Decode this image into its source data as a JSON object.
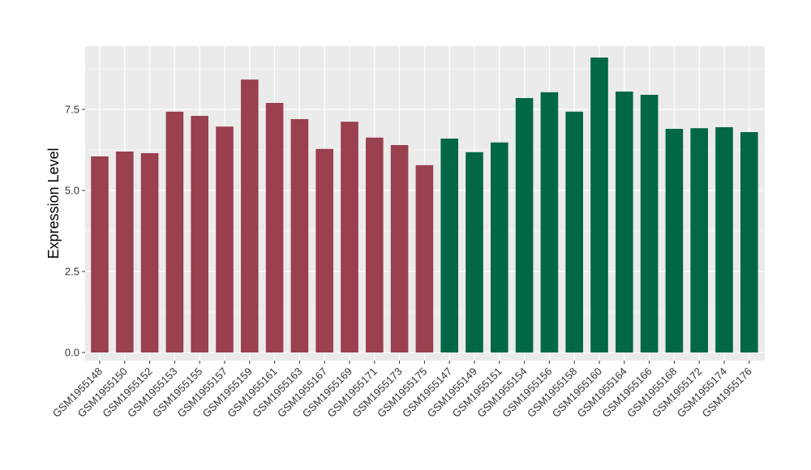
{
  "chart_data": {
    "type": "bar",
    "title": "",
    "xlabel": "",
    "ylabel": "Expression Level",
    "ylim": [
      -0.25,
      9.45
    ],
    "yticks": [
      0.0,
      2.5,
      5.0,
      7.5
    ],
    "ytick_labels": [
      "0.0",
      "2.5",
      "5.0",
      "7.5"
    ],
    "grid": true,
    "legend": "none",
    "panel_color": "#ebebeb",
    "categories": [
      "GSM1955148",
      "GSM1955150",
      "GSM1955152",
      "GSM1955153",
      "GSM1955155",
      "GSM1955157",
      "GSM1955159",
      "GSM1955161",
      "GSM1955163",
      "GSM1955167",
      "GSM1955169",
      "GSM1955171",
      "GSM1955173",
      "GSM1955175",
      "GSM1955147",
      "GSM1955149",
      "GSM1955151",
      "GSM1955154",
      "GSM1955156",
      "GSM1955158",
      "GSM1955160",
      "GSM1955164",
      "GSM1955166",
      "GSM1955168",
      "GSM1955172",
      "GSM1955174",
      "GSM1955176"
    ],
    "values": [
      6.05,
      6.2,
      6.15,
      7.43,
      7.3,
      6.97,
      8.42,
      7.7,
      7.2,
      6.28,
      7.12,
      6.63,
      6.4,
      5.78,
      6.6,
      6.18,
      6.48,
      7.85,
      8.03,
      7.43,
      9.1,
      8.05,
      7.95,
      6.9,
      6.92,
      6.95,
      6.8
    ],
    "groups": [
      "a",
      "a",
      "a",
      "a",
      "a",
      "a",
      "a",
      "a",
      "a",
      "a",
      "a",
      "a",
      "a",
      "a",
      "b",
      "b",
      "b",
      "b",
      "b",
      "b",
      "b",
      "b",
      "b",
      "b",
      "b",
      "b",
      "b"
    ],
    "group_colors": {
      "a": "#9a404f",
      "b": "#026745"
    }
  }
}
